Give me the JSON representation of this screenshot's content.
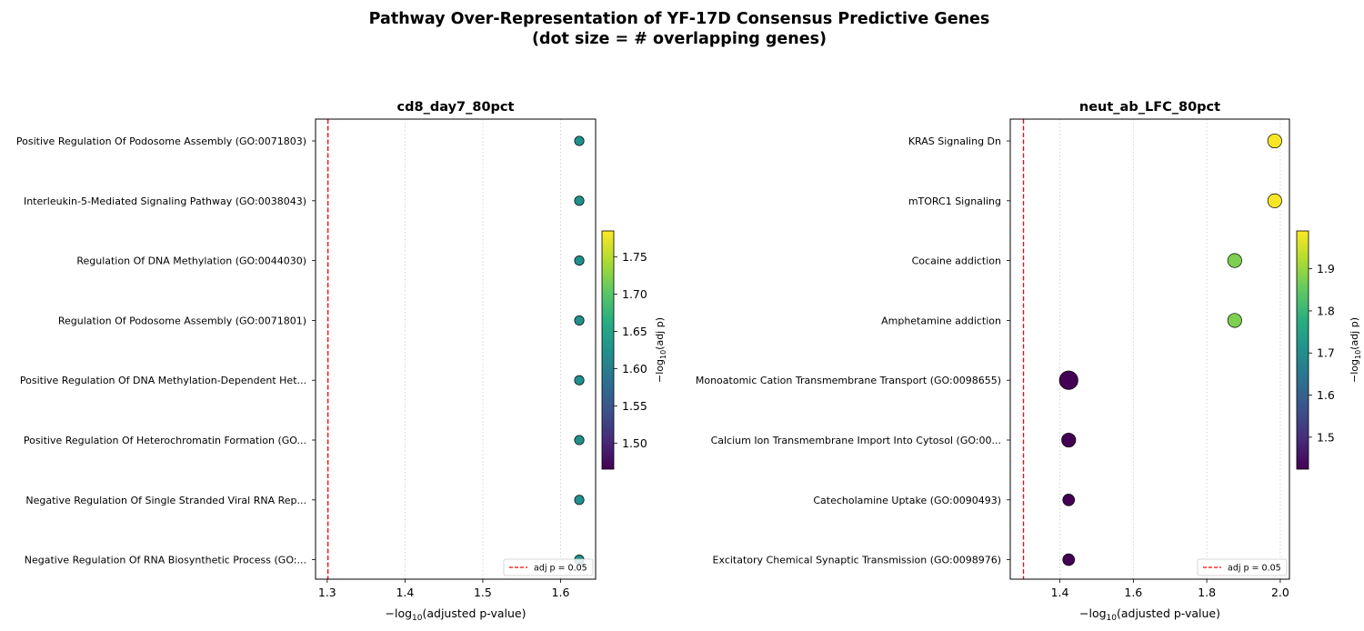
{
  "figure": {
    "title_line1": "Pathway Over-Representation of YF-17D Consensus Predictive Genes",
    "title_line2": "(dot size = # overlapping genes)"
  },
  "chart_data": [
    {
      "type": "scatter",
      "title": "cd8_day7_80pct",
      "xlabel_prefix": "−log",
      "xlabel_sub": "10",
      "xlabel_suffix": "(adjusted p-value)",
      "xlim": [
        1.285,
        1.645
      ],
      "xticks": [
        1.3,
        1.4,
        1.5,
        1.6
      ],
      "xtick_labels": [
        "1.3",
        "1.4",
        "1.5",
        "1.6"
      ],
      "grid": "x-dotted",
      "threshold": {
        "x": 1.301,
        "label": "adj p = 0.05",
        "color": "#ff0000"
      },
      "legend_position": "lower right",
      "categories": [
        "Positive Regulation Of Podosome Assembly (GO:0071803)",
        "Interleukin-5-Mediated Signaling Pathway (GO:0038043)",
        "Regulation Of DNA Methylation (GO:0044030)",
        "Regulation Of Podosome Assembly (GO:0071801)",
        "Positive Regulation Of DNA Methylation-Dependent Het...",
        "Positive Regulation Of Heterochromatin Formation (GO...",
        "Negative Regulation Of Single Stranded Viral RNA Rep...",
        "Negative Regulation Of RNA Biosynthetic Process (GO:..."
      ],
      "x": [
        1.624,
        1.624,
        1.624,
        1.624,
        1.624,
        1.624,
        1.624,
        1.624
      ],
      "color_values": [
        1.624,
        1.624,
        1.624,
        1.624,
        1.624,
        1.624,
        1.624,
        1.624
      ],
      "overlap_genes": [
        1,
        1,
        1,
        1,
        1,
        1,
        1,
        1
      ],
      "colorbar": {
        "label_prefix": "−log",
        "label_sub": "10",
        "label_suffix": "(adj p)",
        "range": [
          1.465,
          1.785
        ],
        "ticks": [
          1.5,
          1.55,
          1.6,
          1.65,
          1.7,
          1.75
        ],
        "tick_labels": [
          "1.50",
          "1.55",
          "1.60",
          "1.65",
          "1.70",
          "1.75"
        ],
        "colormap": "viridis"
      }
    },
    {
      "type": "scatter",
      "title": "neut_ab_LFC_80pct",
      "xlabel_prefix": "−log",
      "xlabel_sub": "10",
      "xlabel_suffix": "(adjusted p-value)",
      "xlim": [
        1.265,
        2.025
      ],
      "xticks": [
        1.4,
        1.6,
        1.8,
        2.0
      ],
      "xtick_labels": [
        "1.4",
        "1.6",
        "1.8",
        "2.0"
      ],
      "grid": "x-dotted",
      "threshold": {
        "x": 1.301,
        "label": "adj p = 0.05",
        "color": "#ff0000"
      },
      "legend_position": "lower right",
      "categories": [
        "KRAS Signaling Dn",
        "mTORC1 Signaling",
        "Cocaine addiction",
        "Amphetamine addiction",
        "Monoatomic Cation Transmembrane Transport (GO:0098655)",
        "Calcium Ion Transmembrane Import Into Cytosol (GO:00...",
        "Catecholamine Uptake (GO:0090493)",
        "Excitatory Chemical Synaptic Transmission (GO:0098976)"
      ],
      "x": [
        1.985,
        1.985,
        1.876,
        1.876,
        1.424,
        1.424,
        1.424,
        1.424
      ],
      "color_values": [
        1.985,
        1.985,
        1.876,
        1.876,
        1.424,
        1.424,
        1.424,
        1.424
      ],
      "overlap_genes": [
        3,
        3,
        3,
        3,
        5,
        3,
        2,
        2
      ],
      "colorbar": {
        "label_prefix": "−log",
        "label_sub": "10",
        "label_suffix": "(adj p)",
        "range": [
          1.424,
          1.99
        ],
        "ticks": [
          1.5,
          1.6,
          1.7,
          1.8,
          1.9
        ],
        "tick_labels": [
          "1.5",
          "1.6",
          "1.7",
          "1.8",
          "1.9"
        ],
        "colormap": "viridis"
      }
    }
  ]
}
